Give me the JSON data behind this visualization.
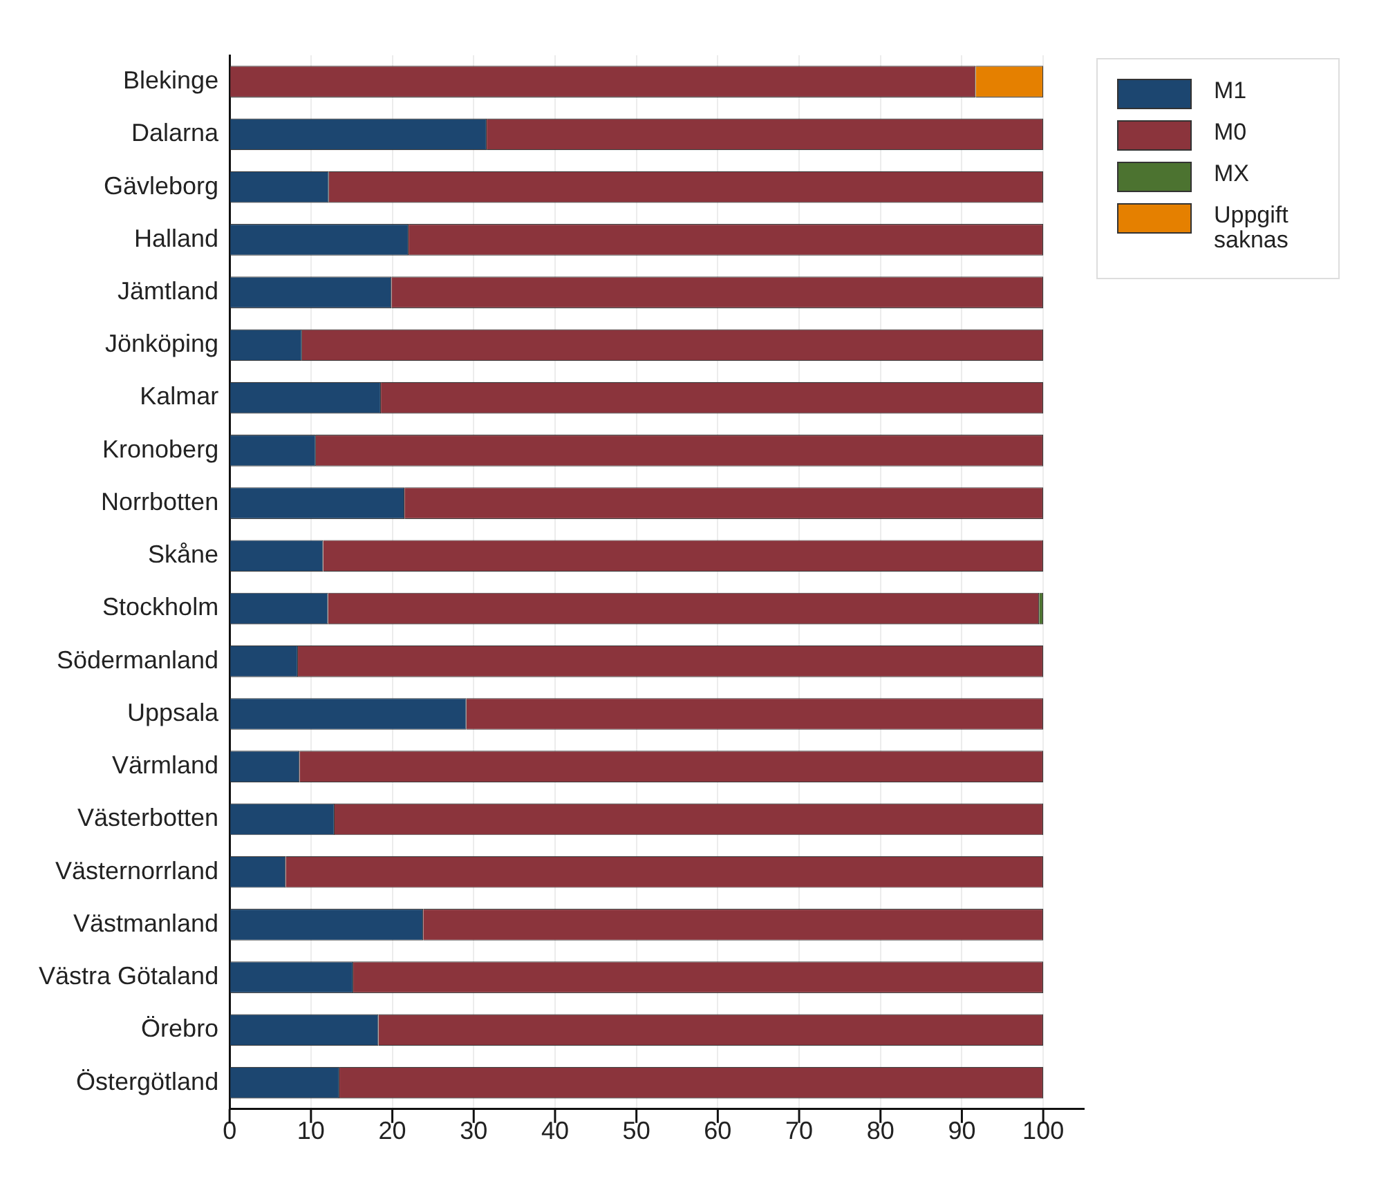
{
  "chart_data": {
    "type": "bar",
    "orientation": "horizontal",
    "stacked": true,
    "categories": [
      "Blekinge",
      "Dalarna",
      "Gävleborg",
      "Halland",
      "Jämtland",
      "Jönköping",
      "Kalmar",
      "Kronoberg",
      "Norrbotten",
      "Skåne",
      "Stockholm",
      "Södermanland",
      "Uppsala",
      "Värmland",
      "Västerbotten",
      "Västernorrland",
      "Västmanland",
      "Västra Götaland",
      "Örebro",
      "Östergötland"
    ],
    "series": [
      {
        "name": "M1",
        "color": "#1c4670",
        "values": [
          0,
          31.6,
          12.2,
          22,
          19.9,
          8.9,
          18.6,
          10.6,
          21.5,
          11.5,
          12.1,
          8.4,
          29.1,
          8.6,
          12.9,
          6.9,
          23.8,
          15.2,
          18.3,
          13.5
        ]
      },
      {
        "name": "M0",
        "color": "#8b343c",
        "values": [
          91.7,
          68.4,
          87.8,
          78,
          80.1,
          91.1,
          81.4,
          89.4,
          78.5,
          88.5,
          87.4,
          91.6,
          70.9,
          91.4,
          87.1,
          93.1,
          76.2,
          84.8,
          81.7,
          86.5
        ]
      },
      {
        "name": "MX",
        "color": "#4c7330",
        "values": [
          0,
          0,
          0,
          0,
          0,
          0,
          0,
          0,
          0,
          0,
          0.5,
          0,
          0,
          0,
          0,
          0,
          0,
          0,
          0,
          0
        ]
      },
      {
        "name": "Uppgift saknas",
        "color": "#e58000",
        "values": [
          8.3,
          0,
          0,
          0,
          0,
          0,
          0,
          0,
          0,
          0,
          0,
          0,
          0,
          0,
          0,
          0,
          0,
          0,
          0,
          0
        ]
      }
    ],
    "xlim": [
      0,
      105
    ],
    "xticks": [
      0,
      10,
      20,
      30,
      40,
      50,
      60,
      70,
      80,
      90,
      100
    ],
    "grid": "x",
    "legend": "top right"
  }
}
